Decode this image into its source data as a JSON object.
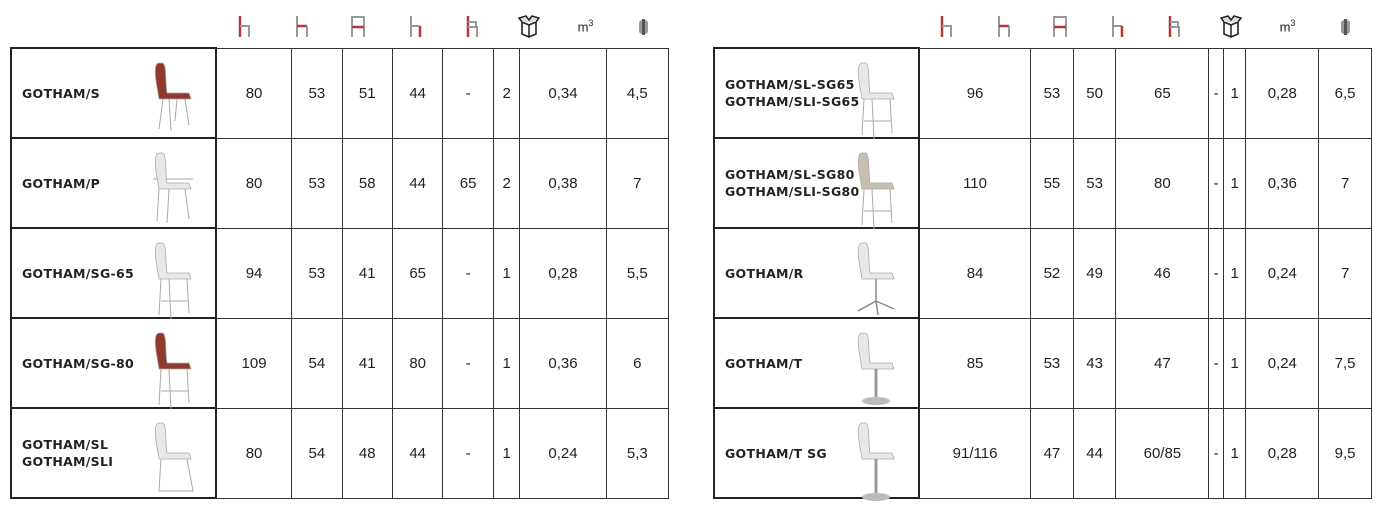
{
  "header": {
    "icons": [
      "total-height-icon",
      "seat-depth-icon",
      "width-icon",
      "seat-height-icon",
      "armrest-height-icon",
      "package-box-icon",
      "volume-icon",
      "weight-icon"
    ],
    "volume_label": "m",
    "volume_sup": "3"
  },
  "colors": {
    "accent": "#b03a3a",
    "chair_red": "#8f3a2c",
    "chair_white": "#e8e8e8",
    "chair_beige": "#c9bfae"
  },
  "left": [
    {
      "name": [
        "GOTHAM/S"
      ],
      "color": "red",
      "base": "legs",
      "values": [
        "80",
        "53",
        "51",
        "44",
        "-",
        "2",
        "0,34",
        "4,5"
      ]
    },
    {
      "name": [
        "GOTHAM/P"
      ],
      "color": "white",
      "base": "arms",
      "values": [
        "80",
        "53",
        "58",
        "44",
        "65",
        "2",
        "0,38",
        "7"
      ]
    },
    {
      "name": [
        "GOTHAM/SG-65"
      ],
      "color": "white",
      "base": "stool",
      "values": [
        "94",
        "53",
        "41",
        "65",
        "-",
        "1",
        "0,28",
        "5,5"
      ]
    },
    {
      "name": [
        "GOTHAM/SG-80"
      ],
      "color": "red",
      "base": "stool",
      "values": [
        "109",
        "54",
        "41",
        "80",
        "-",
        "1",
        "0,36",
        "6"
      ]
    },
    {
      "name": [
        "GOTHAM/SL",
        "GOTHAM/SLI"
      ],
      "color": "white",
      "base": "sled",
      "values": [
        "80",
        "54",
        "48",
        "44",
        "-",
        "1",
        "0,24",
        "5,3"
      ]
    }
  ],
  "right": [
    {
      "name": [
        "GOTHAM/SL-SG65",
        "GOTHAM/SLI-SG65"
      ],
      "color": "white",
      "base": "stool",
      "values": [
        "96",
        "53",
        "50",
        "65",
        "-",
        "1",
        "0,28",
        "6,5"
      ]
    },
    {
      "name": [
        "GOTHAM/SL-SG80",
        "GOTHAM/SLI-SG80"
      ],
      "color": "beige",
      "base": "stool",
      "values": [
        "110",
        "55",
        "53",
        "80",
        "-",
        "1",
        "0,36",
        "7"
      ]
    },
    {
      "name": [
        "GOTHAM/R"
      ],
      "color": "white",
      "base": "swivel",
      "values": [
        "84",
        "52",
        "49",
        "46",
        "-",
        "1",
        "0,24",
        "7"
      ]
    },
    {
      "name": [
        "GOTHAM/T"
      ],
      "color": "white",
      "base": "pedestal",
      "values": [
        "85",
        "53",
        "43",
        "47",
        "-",
        "1",
        "0,24",
        "7,5"
      ]
    },
    {
      "name": [
        "GOTHAM/T SG"
      ],
      "color": "white",
      "base": "tallpedestal",
      "values": [
        "91/116",
        "47",
        "44",
        "60/85",
        "-",
        "1",
        "0,28",
        "9,5"
      ]
    }
  ]
}
